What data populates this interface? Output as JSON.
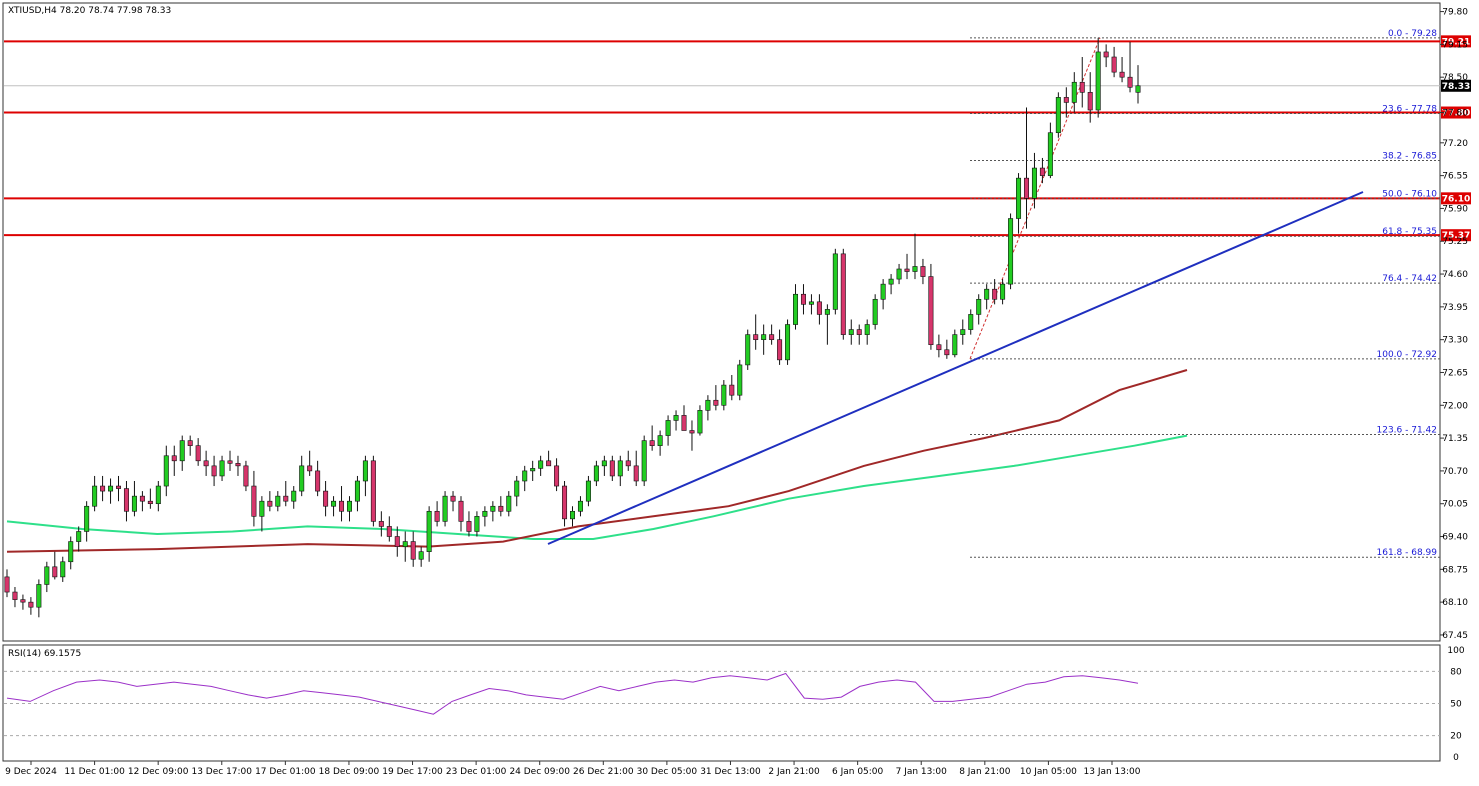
{
  "header": {
    "symbol_info": "XTIUSD,H4  78.20 78.74 77.98 78.33"
  },
  "rsi_panel": {
    "label": "RSI(14) 69.1575",
    "levels": [
      80,
      50,
      20
    ],
    "ticks": [
      "100",
      "80",
      "50",
      "20",
      "0"
    ]
  },
  "colors": {
    "bull": "#22cc22",
    "bear": "#d6356b",
    "resistance": "#dd0000",
    "trendline": "#1f2fbf",
    "ma_slow": "#a02828",
    "ma_fast": "#2ee08a",
    "rsi": "#9b30c8",
    "fib": "#1a1ad6"
  },
  "chart_data": {
    "type": "candlestick",
    "price_ticks": [
      "79.80",
      "79.15",
      "78.50",
      "77.80",
      "77.20",
      "76.55",
      "75.90",
      "75.25",
      "74.60",
      "73.95",
      "73.30",
      "72.65",
      "72.00",
      "71.35",
      "70.70",
      "70.05",
      "69.40",
      "68.75",
      "68.10",
      "67.45"
    ],
    "ylim": [
      67.35,
      79.95
    ],
    "time_labels": [
      "9 Dec 2024",
      "11 Dec 01:00",
      "12 Dec 09:00",
      "13 Dec 17:00",
      "17 Dec 01:00",
      "18 Dec 09:00",
      "19 Dec 17:00",
      "23 Dec 01:00",
      "24 Dec 09:00",
      "26 Dec 21:00",
      "30 Dec 05:00",
      "31 Dec 13:00",
      "2 Jan 21:00",
      "6 Jan 05:00",
      "7 Jan 13:00",
      "8 Jan 21:00",
      "10 Jan 05:00",
      "13 Jan 13:00"
    ],
    "horizontal_levels": [
      {
        "value": 79.21,
        "label": "79.21"
      },
      {
        "value": 77.8,
        "label": "77.80"
      },
      {
        "value": 76.1,
        "label": "76.10"
      },
      {
        "value": 75.37,
        "label": "75.37"
      }
    ],
    "current_price": {
      "value": 78.33,
      "label": "78.33"
    },
    "fibonacci": [
      {
        "value": 79.28,
        "label": "0.0 - 79.28"
      },
      {
        "value": 77.78,
        "label": "23.6 - 77.78"
      },
      {
        "value": 76.85,
        "label": "38.2 - 76.85"
      },
      {
        "value": 76.1,
        "label": "50.0 - 76.10"
      },
      {
        "value": 75.35,
        "label": "61.8 - 75.35"
      },
      {
        "value": 74.42,
        "label": "76.4 - 74.42"
      },
      {
        "value": 72.92,
        "label": "100.0 - 72.92"
      },
      {
        "value": 71.42,
        "label": "123.6 - 71.42"
      },
      {
        "value": 68.99,
        "label": "161.8 - 68.99"
      }
    ],
    "trendline": {
      "from_index": 68,
      "from_value": 69.3,
      "to_index": 169,
      "to_value": 76.2
    },
    "fib_swing": {
      "low_index": 121,
      "low_value": 72.92,
      "high_index": 137,
      "high_value": 79.28
    },
    "candles": [
      [
        68.6,
        68.75,
        68.2,
        68.3
      ],
      [
        68.3,
        68.4,
        68.0,
        68.15
      ],
      [
        68.15,
        68.25,
        67.95,
        68.1
      ],
      [
        68.1,
        68.2,
        67.85,
        68.0
      ],
      [
        68.0,
        68.55,
        67.8,
        68.45
      ],
      [
        68.45,
        68.9,
        68.3,
        68.8
      ],
      [
        68.8,
        69.1,
        68.55,
        68.6
      ],
      [
        68.6,
        69.0,
        68.5,
        68.9
      ],
      [
        68.9,
        69.4,
        68.75,
        69.3
      ],
      [
        69.3,
        69.6,
        69.1,
        69.5
      ],
      [
        69.5,
        70.1,
        69.3,
        70.0
      ],
      [
        70.0,
        70.6,
        69.9,
        70.4
      ],
      [
        70.4,
        70.6,
        70.1,
        70.3
      ],
      [
        70.3,
        70.55,
        70.05,
        70.4
      ],
      [
        70.4,
        70.6,
        70.1,
        70.35
      ],
      [
        70.35,
        70.5,
        69.7,
        69.9
      ],
      [
        69.9,
        70.5,
        69.8,
        70.2
      ],
      [
        70.2,
        70.3,
        69.9,
        70.1
      ],
      [
        70.1,
        70.35,
        69.95,
        70.05
      ],
      [
        70.05,
        70.5,
        69.9,
        70.4
      ],
      [
        70.4,
        71.2,
        70.2,
        71.0
      ],
      [
        71.0,
        71.2,
        70.6,
        70.9
      ],
      [
        70.9,
        71.4,
        70.7,
        71.3
      ],
      [
        71.3,
        71.4,
        71.0,
        71.2
      ],
      [
        71.2,
        71.35,
        70.8,
        70.9
      ],
      [
        70.9,
        71.1,
        70.6,
        70.8
      ],
      [
        70.8,
        71.0,
        70.4,
        70.6
      ],
      [
        70.6,
        71.0,
        70.5,
        70.9
      ],
      [
        70.9,
        71.1,
        70.7,
        70.85
      ],
      [
        70.85,
        71.0,
        70.6,
        70.8
      ],
      [
        70.8,
        70.9,
        70.3,
        70.4
      ],
      [
        70.4,
        70.7,
        69.6,
        69.8
      ],
      [
        69.8,
        70.2,
        69.5,
        70.1
      ],
      [
        70.1,
        70.3,
        69.9,
        70.0
      ],
      [
        70.0,
        70.3,
        69.9,
        70.2
      ],
      [
        70.2,
        70.5,
        70.0,
        70.1
      ],
      [
        70.1,
        70.4,
        69.95,
        70.3
      ],
      [
        70.3,
        71.0,
        70.2,
        70.8
      ],
      [
        70.8,
        71.1,
        70.6,
        70.7
      ],
      [
        70.7,
        70.9,
        70.2,
        70.3
      ],
      [
        70.3,
        70.5,
        69.8,
        70.0
      ],
      [
        70.0,
        70.2,
        69.8,
        70.1
      ],
      [
        70.1,
        70.4,
        69.7,
        69.9
      ],
      [
        69.9,
        70.2,
        69.7,
        70.1
      ],
      [
        70.1,
        70.6,
        69.9,
        70.5
      ],
      [
        70.5,
        71.0,
        70.2,
        70.9
      ],
      [
        70.9,
        71.0,
        69.6,
        69.7
      ],
      [
        69.7,
        69.9,
        69.4,
        69.6
      ],
      [
        69.6,
        69.8,
        69.3,
        69.4
      ],
      [
        69.4,
        69.6,
        69.0,
        69.2
      ],
      [
        69.2,
        69.5,
        68.9,
        69.3
      ],
      [
        69.3,
        69.5,
        68.8,
        68.95
      ],
      [
        68.95,
        69.2,
        68.8,
        69.1
      ],
      [
        69.1,
        70.0,
        68.9,
        69.9
      ],
      [
        69.9,
        70.1,
        69.6,
        69.7
      ],
      [
        69.7,
        70.3,
        69.6,
        70.2
      ],
      [
        70.2,
        70.3,
        69.9,
        70.1
      ],
      [
        70.1,
        70.2,
        69.5,
        69.7
      ],
      [
        69.7,
        69.9,
        69.4,
        69.5
      ],
      [
        69.5,
        69.9,
        69.4,
        69.8
      ],
      [
        69.8,
        70.0,
        69.6,
        69.9
      ],
      [
        69.9,
        70.1,
        69.7,
        70.0
      ],
      [
        70.0,
        70.2,
        69.8,
        69.9
      ],
      [
        69.9,
        70.3,
        69.8,
        70.2
      ],
      [
        70.2,
        70.6,
        70.0,
        70.5
      ],
      [
        70.5,
        70.8,
        70.3,
        70.7
      ],
      [
        70.7,
        70.9,
        70.5,
        70.75
      ],
      [
        70.75,
        71.0,
        70.6,
        70.9
      ],
      [
        70.9,
        71.1,
        70.8,
        70.8
      ],
      [
        70.8,
        70.95,
        70.3,
        70.4
      ],
      [
        70.4,
        70.5,
        69.6,
        69.75
      ],
      [
        69.75,
        70.0,
        69.6,
        69.9
      ],
      [
        69.9,
        70.2,
        69.8,
        70.1
      ],
      [
        70.1,
        70.6,
        70.0,
        70.5
      ],
      [
        70.5,
        70.9,
        70.4,
        70.8
      ],
      [
        70.8,
        71.0,
        70.6,
        70.9
      ],
      [
        70.9,
        71.0,
        70.5,
        70.6
      ],
      [
        70.6,
        71.0,
        70.4,
        70.9
      ],
      [
        70.9,
        71.1,
        70.7,
        70.8
      ],
      [
        70.8,
        71.1,
        70.4,
        70.5
      ],
      [
        70.5,
        71.4,
        70.4,
        71.3
      ],
      [
        71.3,
        71.6,
        71.1,
        71.2
      ],
      [
        71.2,
        71.5,
        71.0,
        71.4
      ],
      [
        71.4,
        71.8,
        71.2,
        71.7
      ],
      [
        71.7,
        71.9,
        71.5,
        71.8
      ],
      [
        71.8,
        72.0,
        71.6,
        71.5
      ],
      [
        71.5,
        71.7,
        71.1,
        71.45
      ],
      [
        71.45,
        72.0,
        71.4,
        71.9
      ],
      [
        71.9,
        72.2,
        71.7,
        72.1
      ],
      [
        72.1,
        72.4,
        71.9,
        72.0
      ],
      [
        72.0,
        72.5,
        71.9,
        72.4
      ],
      [
        72.4,
        72.6,
        72.1,
        72.2
      ],
      [
        72.2,
        72.9,
        72.1,
        72.8
      ],
      [
        72.8,
        73.5,
        72.7,
        73.4
      ],
      [
        73.4,
        73.8,
        73.1,
        73.3
      ],
      [
        73.3,
        73.6,
        73.0,
        73.4
      ],
      [
        73.4,
        73.6,
        73.2,
        73.3
      ],
      [
        73.3,
        73.5,
        72.8,
        72.9
      ],
      [
        72.9,
        73.7,
        72.8,
        73.6
      ],
      [
        73.6,
        74.4,
        73.5,
        74.2
      ],
      [
        74.2,
        74.4,
        73.8,
        74.0
      ],
      [
        74.0,
        74.2,
        73.8,
        74.05
      ],
      [
        74.05,
        74.2,
        73.6,
        73.8
      ],
      [
        73.8,
        74.0,
        73.2,
        73.9
      ],
      [
        73.9,
        75.1,
        73.8,
        75.0
      ],
      [
        75.0,
        75.1,
        73.3,
        73.4
      ],
      [
        73.4,
        73.7,
        73.2,
        73.5
      ],
      [
        73.5,
        73.6,
        73.2,
        73.4
      ],
      [
        73.4,
        73.7,
        73.2,
        73.6
      ],
      [
        73.6,
        74.2,
        73.5,
        74.1
      ],
      [
        74.1,
        74.5,
        73.9,
        74.4
      ],
      [
        74.4,
        74.6,
        74.2,
        74.5
      ],
      [
        74.5,
        74.8,
        74.4,
        74.7
      ],
      [
        74.7,
        75.0,
        74.5,
        74.65
      ],
      [
        74.65,
        75.4,
        74.5,
        74.75
      ],
      [
        74.75,
        74.9,
        74.4,
        74.55
      ],
      [
        74.55,
        74.8,
        73.1,
        73.2
      ],
      [
        73.2,
        73.4,
        72.95,
        73.1
      ],
      [
        73.1,
        73.3,
        72.92,
        73.0
      ],
      [
        73.0,
        73.5,
        72.95,
        73.4
      ],
      [
        73.4,
        73.7,
        73.2,
        73.5
      ],
      [
        73.5,
        73.9,
        73.4,
        73.8
      ],
      [
        73.8,
        74.2,
        73.6,
        74.1
      ],
      [
        74.1,
        74.4,
        73.9,
        74.3
      ],
      [
        74.3,
        74.5,
        74.0,
        74.1
      ],
      [
        74.1,
        74.5,
        74.0,
        74.4
      ],
      [
        74.4,
        75.8,
        74.3,
        75.7
      ],
      [
        75.7,
        76.6,
        75.4,
        76.5
      ],
      [
        76.5,
        77.9,
        75.5,
        76.1
      ],
      [
        76.1,
        77.0,
        75.9,
        76.7
      ],
      [
        76.7,
        76.9,
        76.4,
        76.55
      ],
      [
        76.55,
        77.6,
        76.5,
        77.4
      ],
      [
        77.4,
        78.2,
        77.3,
        78.1
      ],
      [
        78.1,
        78.3,
        77.7,
        78.0
      ],
      [
        78.0,
        78.6,
        77.8,
        78.4
      ],
      [
        78.4,
        78.9,
        77.9,
        78.2
      ],
      [
        78.2,
        78.6,
        77.6,
        77.85
      ],
      [
        77.85,
        79.28,
        77.7,
        79.0
      ],
      [
        79.0,
        79.15,
        78.7,
        78.9
      ],
      [
        78.9,
        79.1,
        78.5,
        78.6
      ],
      [
        78.6,
        78.9,
        78.4,
        78.5
      ],
      [
        78.5,
        79.2,
        78.2,
        78.3
      ],
      [
        78.2,
        78.74,
        77.98,
        78.33
      ]
    ],
    "ma_slow": [
      [
        0,
        69.1
      ],
      [
        20,
        69.15
      ],
      [
        40,
        69.25
      ],
      [
        56,
        69.2
      ],
      [
        66,
        69.3
      ],
      [
        76,
        69.6
      ],
      [
        86,
        69.8
      ],
      [
        96,
        70.0
      ],
      [
        104,
        70.3
      ],
      [
        114,
        70.8
      ],
      [
        122,
        71.1
      ],
      [
        130,
        71.35
      ],
      [
        140,
        71.7
      ],
      [
        148,
        72.3
      ],
      [
        157,
        72.7
      ]
    ],
    "ma_fast": [
      [
        0,
        69.7
      ],
      [
        10,
        69.55
      ],
      [
        20,
        69.45
      ],
      [
        30,
        69.5
      ],
      [
        40,
        69.6
      ],
      [
        50,
        69.55
      ],
      [
        60,
        69.45
      ],
      [
        70,
        69.35
      ],
      [
        78,
        69.35
      ],
      [
        86,
        69.55
      ],
      [
        94,
        69.8
      ],
      [
        104,
        70.15
      ],
      [
        114,
        70.4
      ],
      [
        124,
        70.6
      ],
      [
        134,
        70.8
      ],
      [
        142,
        71.0
      ],
      [
        150,
        71.2
      ],
      [
        157,
        71.4
      ]
    ],
    "rsi": [
      [
        0,
        55
      ],
      [
        5,
        52
      ],
      [
        10,
        62
      ],
      [
        15,
        70
      ],
      [
        20,
        72
      ],
      [
        24,
        70
      ],
      [
        28,
        66
      ],
      [
        32,
        68
      ],
      [
        36,
        70
      ],
      [
        40,
        68
      ],
      [
        44,
        66
      ],
      [
        48,
        62
      ],
      [
        52,
        58
      ],
      [
        56,
        55
      ],
      [
        60,
        58
      ],
      [
        64,
        62
      ],
      [
        68,
        60
      ],
      [
        72,
        58
      ],
      [
        76,
        56
      ],
      [
        80,
        52
      ],
      [
        84,
        48
      ],
      [
        88,
        44
      ],
      [
        92,
        40
      ],
      [
        96,
        52
      ],
      [
        100,
        58
      ],
      [
        104,
        64
      ],
      [
        108,
        62
      ],
      [
        112,
        58
      ],
      [
        116,
        56
      ],
      [
        120,
        54
      ],
      [
        124,
        60
      ],
      [
        128,
        66
      ],
      [
        132,
        62
      ],
      [
        136,
        66
      ],
      [
        140,
        70
      ],
      [
        144,
        72
      ],
      [
        148,
        70
      ],
      [
        152,
        74
      ],
      [
        156,
        76
      ],
      [
        160,
        74
      ],
      [
        164,
        72
      ],
      [
        168,
        78
      ],
      [
        172,
        55
      ],
      [
        176,
        54
      ],
      [
        180,
        56
      ],
      [
        184,
        66
      ],
      [
        188,
        70
      ],
      [
        192,
        72
      ],
      [
        196,
        70
      ],
      [
        200,
        52
      ],
      [
        204,
        52
      ],
      [
        208,
        54
      ],
      [
        212,
        56
      ],
      [
        216,
        62
      ],
      [
        220,
        68
      ],
      [
        224,
        70
      ],
      [
        228,
        75
      ],
      [
        232,
        76
      ],
      [
        236,
        74
      ],
      [
        240,
        72
      ],
      [
        244,
        69
      ]
    ]
  }
}
